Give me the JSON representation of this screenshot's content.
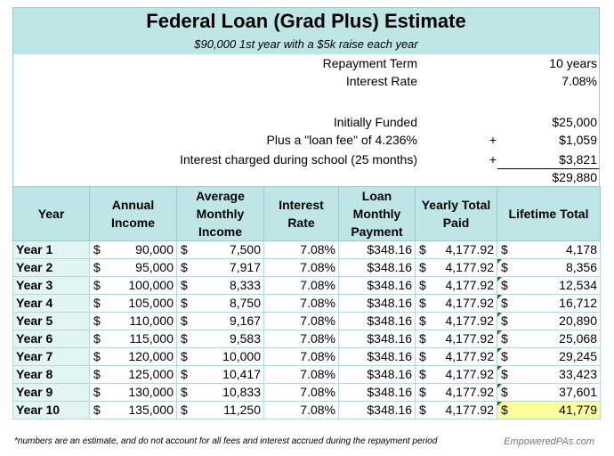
{
  "title": "Federal Loan (Grad Plus) Estimate",
  "subtitle": "$90,000 1st year with a $5k raise each year",
  "summary": {
    "repayment_term_label": "Repayment Term",
    "repayment_term_value": "10 years",
    "interest_rate_label": "Interest Rate",
    "interest_rate_value": "7.08%",
    "initially_funded_label": "Initially Funded",
    "initially_funded_value": "$25,000",
    "loan_fee_label": "Plus a \"loan fee\" of 4.236%",
    "loan_fee_sign": "+",
    "loan_fee_value": "$1,059",
    "school_interest_label": "Interest charged during school (25 months)",
    "school_interest_sign": "+",
    "school_interest_value": "$3,821",
    "total_value": "$29,880"
  },
  "table": {
    "headers": [
      "Year",
      "Annual Income",
      "Average Monthly Income",
      "Interest Rate",
      "Loan Monthly Payment",
      "Yearly Total Paid",
      "Lifetime Total"
    ],
    "currency_symbol": "$",
    "rows": [
      {
        "year": "Year 1",
        "annual": "90,000",
        "monthly": "7,500",
        "rate": "7.08%",
        "payment": "$348.16",
        "yearly": "4,177.92",
        "lifetime": "4,178"
      },
      {
        "year": "Year 2",
        "annual": "95,000",
        "monthly": "7,917",
        "rate": "7.08%",
        "payment": "$348.16",
        "yearly": "4,177.92",
        "lifetime": "8,356"
      },
      {
        "year": "Year 3",
        "annual": "100,000",
        "monthly": "8,333",
        "rate": "7.08%",
        "payment": "$348.16",
        "yearly": "4,177.92",
        "lifetime": "12,534"
      },
      {
        "year": "Year 4",
        "annual": "105,000",
        "monthly": "8,750",
        "rate": "7.08%",
        "payment": "$348.16",
        "yearly": "4,177.92",
        "lifetime": "16,712"
      },
      {
        "year": "Year 5",
        "annual": "110,000",
        "monthly": "9,167",
        "rate": "7.08%",
        "payment": "$348.16",
        "yearly": "4,177.92",
        "lifetime": "20,890"
      },
      {
        "year": "Year 6",
        "annual": "115,000",
        "monthly": "9,583",
        "rate": "7.08%",
        "payment": "$348.16",
        "yearly": "4,177.92",
        "lifetime": "25,068"
      },
      {
        "year": "Year 7",
        "annual": "120,000",
        "monthly": "10,000",
        "rate": "7.08%",
        "payment": "$348.16",
        "yearly": "4,177.92",
        "lifetime": "29,245"
      },
      {
        "year": "Year 8",
        "annual": "125,000",
        "monthly": "10,417",
        "rate": "7.08%",
        "payment": "$348.16",
        "yearly": "4,177.92",
        "lifetime": "33,423"
      },
      {
        "year": "Year 9",
        "annual": "130,000",
        "monthly": "10,833",
        "rate": "7.08%",
        "payment": "$348.16",
        "yearly": "4,177.92",
        "lifetime": "37,601"
      },
      {
        "year": "Year 10",
        "annual": "135,000",
        "monthly": "11,250",
        "rate": "7.08%",
        "payment": "$348.16",
        "yearly": "4,177.92",
        "lifetime": "41,779"
      }
    ]
  },
  "footer": {
    "note": "*numbers are an estimate, and do not account for all fees and interest accrued during the repayment period",
    "brand": "EmpoweredPAs.com"
  },
  "colors": {
    "header_fill": "#bfe6e6",
    "year_fill": "#e2f4f4",
    "highlight": "#ffff99",
    "error_indicator": "#1a7a1a"
  }
}
